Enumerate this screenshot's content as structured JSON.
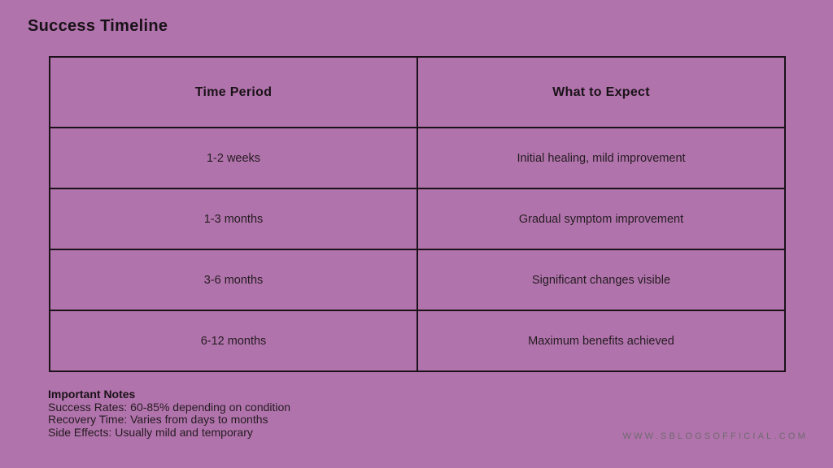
{
  "page": {
    "title": "Success Timeline"
  },
  "colors": {
    "background": "#b173ab",
    "border": "#1a1218",
    "text": "#241c22",
    "heading_text": "#191218",
    "watermark": "#6f6a71"
  },
  "table": {
    "headers": [
      "Time Period",
      "What to Expect"
    ],
    "rows": [
      {
        "period": "1-2 weeks",
        "expectation": "Initial healing, mild improvement"
      },
      {
        "period": "1-3 months",
        "expectation": "Gradual symptom improvement"
      },
      {
        "period": "3-6 months",
        "expectation": "Significant changes visible"
      },
      {
        "period": "6-12 months",
        "expectation": "Maximum benefits achieved"
      }
    ]
  },
  "notes": {
    "title": "Important Notes",
    "lines": [
      "Success Rates: 60-85% depending on condition",
      "Recovery Time: Varies from days to months",
      "Side Effects: Usually mild and temporary"
    ]
  },
  "footer": {
    "website": "WWW.SBLOGSOFFICIAL.COM"
  },
  "chart_data": {
    "type": "table",
    "title": "Success Timeline",
    "columns": [
      "Time Period",
      "What to Expect"
    ],
    "rows": [
      [
        "1-2 weeks",
        "Initial healing, mild improvement"
      ],
      [
        "1-3 months",
        "Gradual symptom improvement"
      ],
      [
        "3-6 months",
        "Significant changes visible"
      ],
      [
        "6-12 months",
        "Maximum benefits achieved"
      ]
    ],
    "annotations": [
      "Important Notes",
      "Success Rates: 60-85% depending on condition",
      "Recovery Time: Varies from days to months",
      "Side Effects: Usually mild and temporary"
    ],
    "layout": {
      "grid": "full-borders",
      "header_bold": true,
      "cell_align": "center"
    }
  }
}
